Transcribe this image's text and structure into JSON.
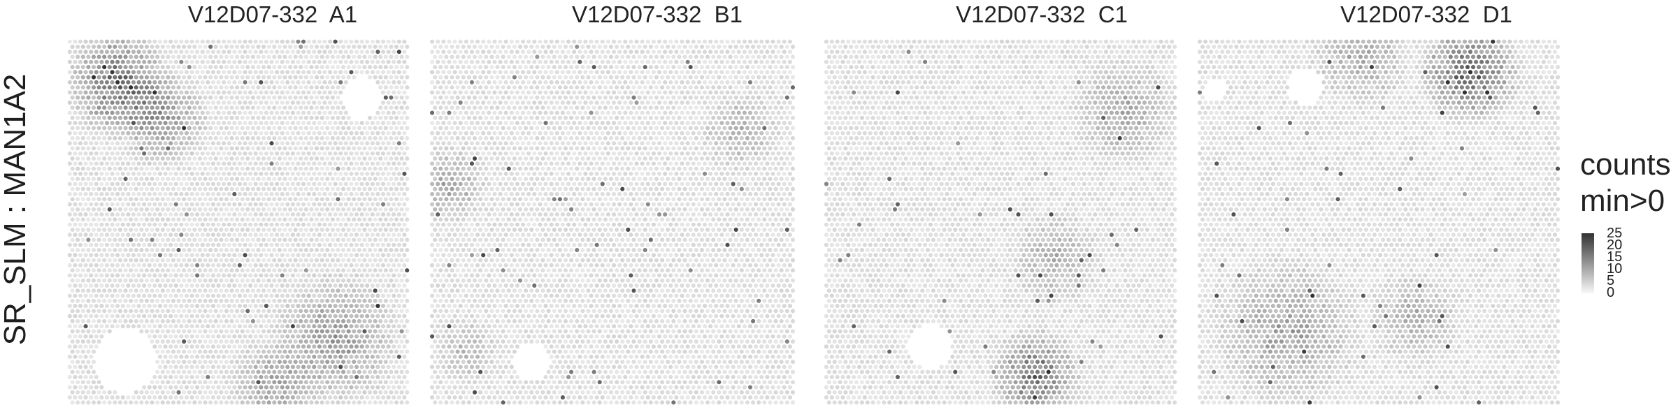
{
  "chart_data": {
    "type": "heatmap",
    "ylabel": "SR_SLM : MAN1A2",
    "legend": {
      "title_line1": "counts",
      "title_line2": "min>0",
      "ticks": [
        "25",
        "20",
        "15",
        "10",
        "5",
        "0"
      ],
      "range": [
        0,
        25
      ],
      "low_color": "#f8f8f8",
      "high_color": "#333333",
      "placement": "right"
    },
    "panels": [
      {
        "title": "V12D07-332  A1",
        "hotspots": [
          {
            "cx": 0.15,
            "cy": 0.12,
            "r": 0.16,
            "v": 16
          },
          {
            "cx": 0.28,
            "cy": 0.22,
            "r": 0.14,
            "v": 11
          },
          {
            "cx": 0.78,
            "cy": 0.82,
            "r": 0.2,
            "v": 10
          },
          {
            "cx": 0.6,
            "cy": 0.95,
            "r": 0.14,
            "v": 9
          }
        ],
        "gaps": [
          {
            "cx": 0.17,
            "cy": 0.88,
            "r": 0.09
          },
          {
            "cx": 0.86,
            "cy": 0.16,
            "r": 0.06
          }
        ]
      },
      {
        "title": "V12D07-332  B1",
        "hotspots": [
          {
            "cx": 0.05,
            "cy": 0.4,
            "r": 0.12,
            "v": 8
          },
          {
            "cx": 0.85,
            "cy": 0.25,
            "r": 0.12,
            "v": 7
          },
          {
            "cx": 0.1,
            "cy": 0.85,
            "r": 0.1,
            "v": 6
          }
        ],
        "gaps": [
          {
            "cx": 0.28,
            "cy": 0.88,
            "r": 0.05
          }
        ]
      },
      {
        "title": "V12D07-332  C1",
        "hotspots": [
          {
            "cx": 0.6,
            "cy": 0.92,
            "r": 0.14,
            "v": 16
          },
          {
            "cx": 0.85,
            "cy": 0.2,
            "r": 0.16,
            "v": 8
          },
          {
            "cx": 0.65,
            "cy": 0.6,
            "r": 0.14,
            "v": 7
          }
        ],
        "gaps": [
          {
            "cx": 0.3,
            "cy": 0.84,
            "r": 0.06
          }
        ]
      },
      {
        "title": "V12D07-332  D1",
        "hotspots": [
          {
            "cx": 0.75,
            "cy": 0.09,
            "r": 0.15,
            "v": 18
          },
          {
            "cx": 0.45,
            "cy": 0.05,
            "r": 0.15,
            "v": 8
          },
          {
            "cx": 0.25,
            "cy": 0.8,
            "r": 0.22,
            "v": 9
          },
          {
            "cx": 0.6,
            "cy": 0.76,
            "r": 0.14,
            "v": 7
          }
        ],
        "gaps": [
          {
            "cx": 0.3,
            "cy": 0.13,
            "r": 0.05
          },
          {
            "cx": 0.05,
            "cy": 0.14,
            "r": 0.03
          }
        ]
      }
    ]
  }
}
